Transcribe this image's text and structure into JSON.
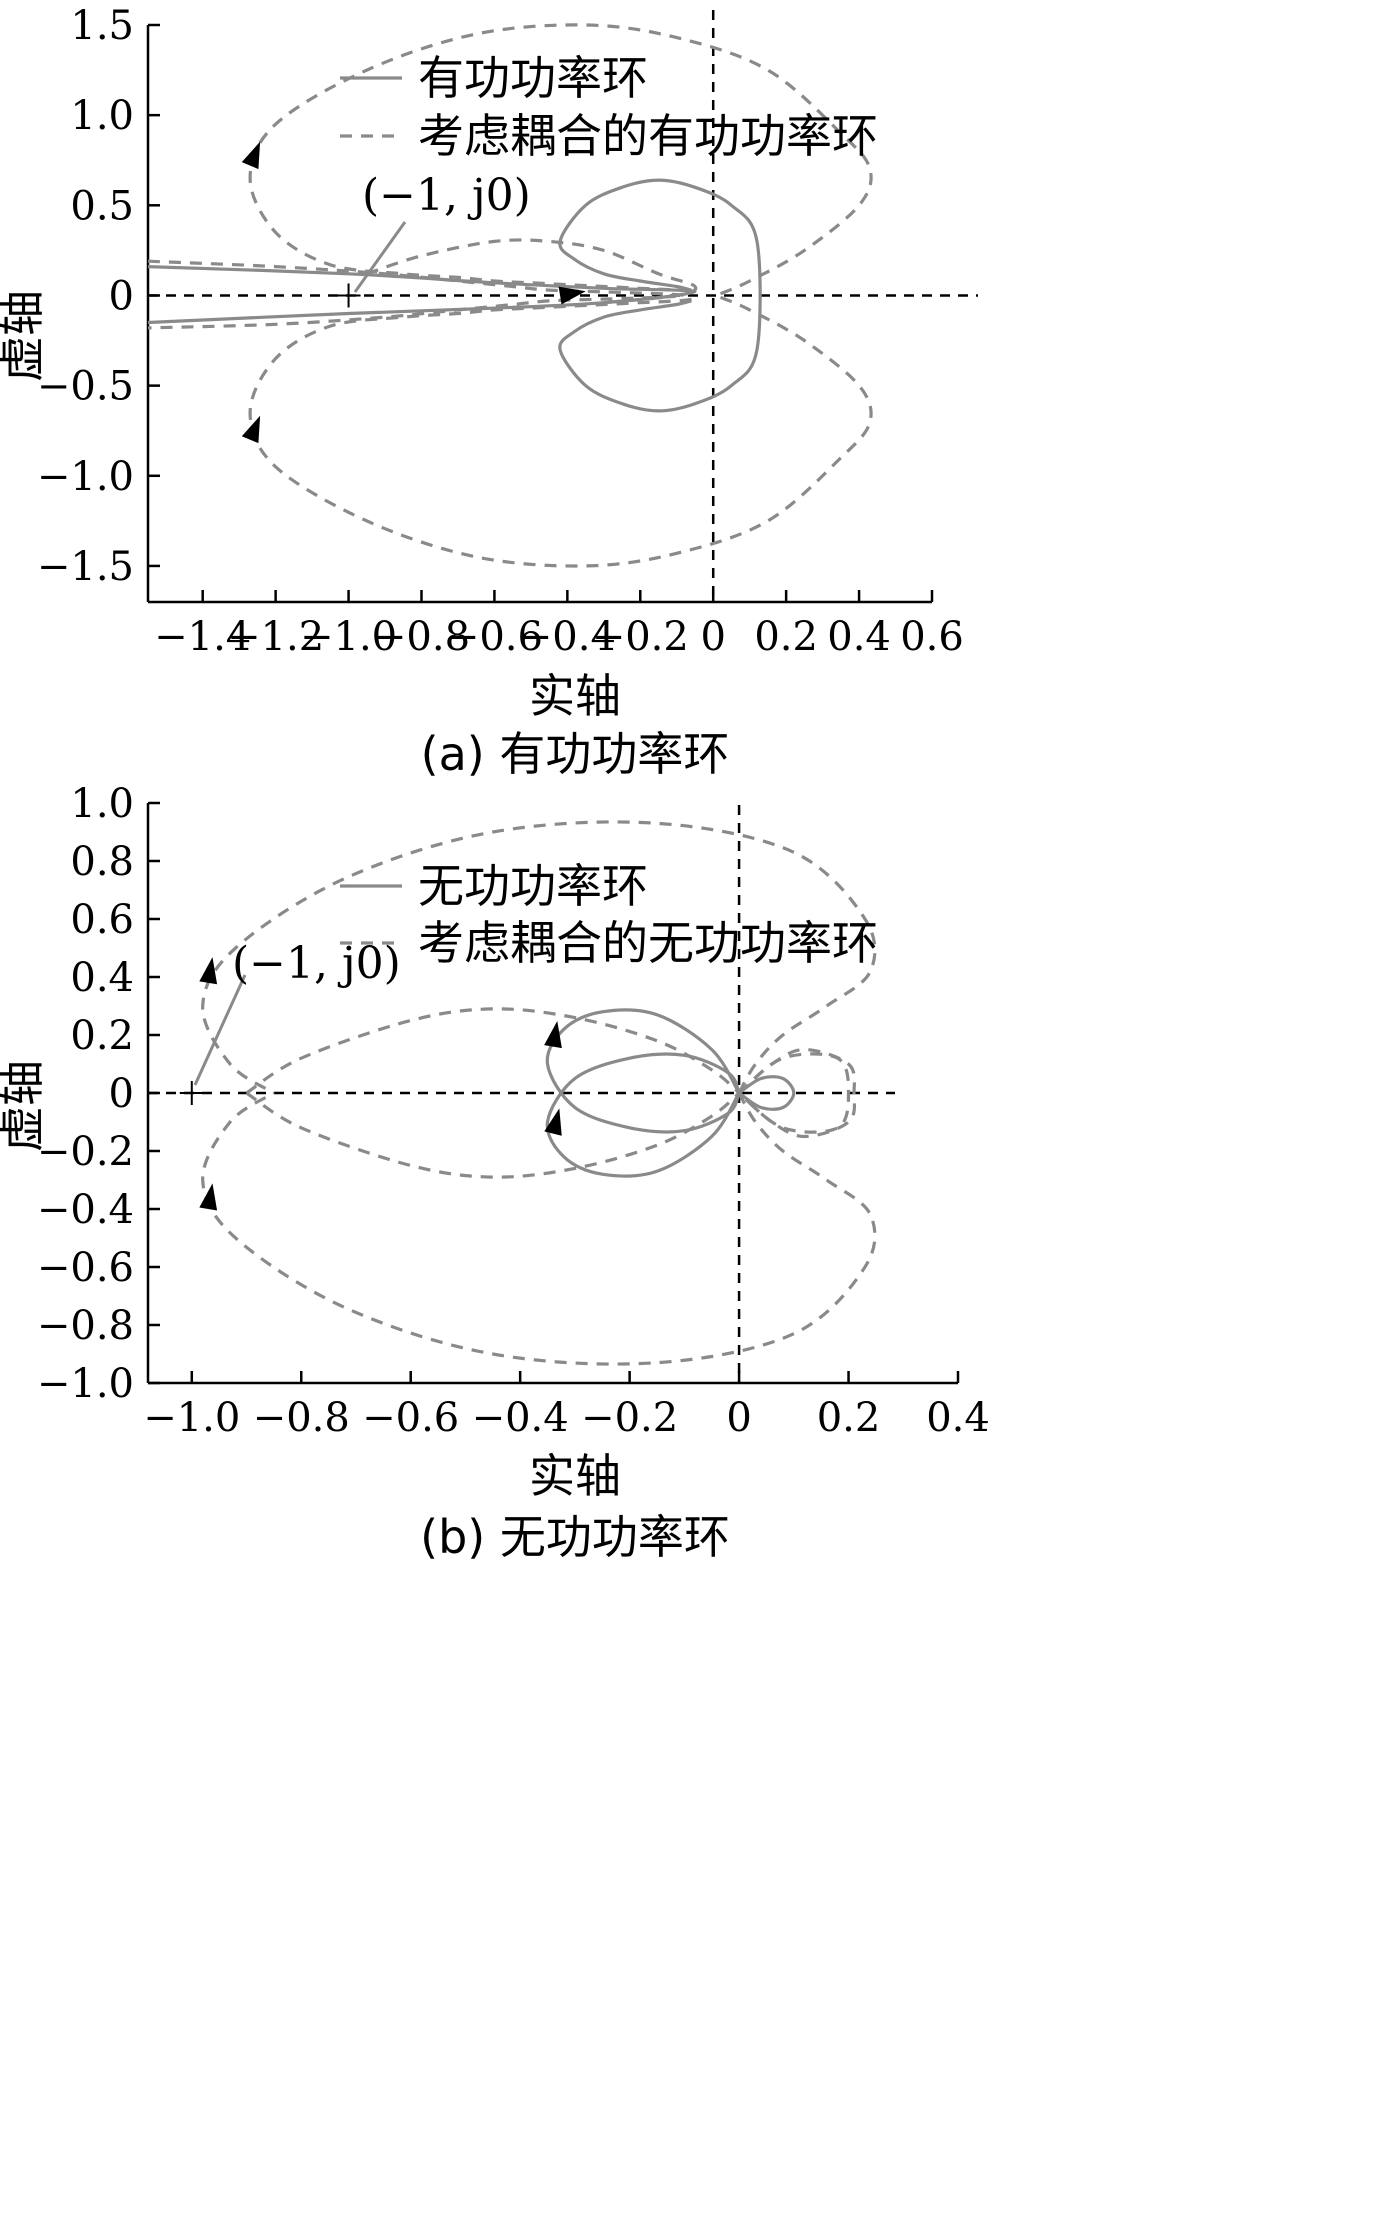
{
  "chart_data": [
    {
      "type": "line",
      "panel": "a",
      "caption": "(a)  有功功率环",
      "xlabel": "实轴",
      "ylabel": "虚轴",
      "xlim": [
        -1.55,
        0.6
      ],
      "ylim": [
        -1.7,
        1.5
      ],
      "xticks": [
        -1.4,
        -1.2,
        -1.0,
        -0.8,
        -0.6,
        -0.4,
        -0.2,
        0,
        0.2,
        0.4,
        0.6
      ],
      "xtick_labels": [
        "−1.4",
        "−1.2",
        "−1.0",
        "−0.8",
        "−0.6",
        "−0.4",
        "−0.2",
        "0",
        "0.2",
        "0.4",
        "0.6"
      ],
      "yticks": [
        1.5,
        1.0,
        0.5,
        0,
        -0.5,
        -1.0,
        -1.5
      ],
      "ytick_labels": [
        "1.5",
        "1.0",
        "0.5",
        "0",
        "−0.5",
        "−1.0",
        "−1.5"
      ],
      "grid": false,
      "legend_position": "top",
      "annotation": {
        "text": "(−1, j0)",
        "x": -1.0,
        "y": 0
      },
      "series": [
        {
          "name": "有功功率环",
          "style": "solid",
          "color": "#8a8a8a",
          "x": [
            -0.06,
            -0.1,
            -0.2,
            -0.3,
            -0.38,
            -0.42,
            -0.35,
            -0.25,
            -0.15,
            -0.05,
            0.05,
            0.12,
            0.12,
            0.05,
            -0.05,
            -0.15,
            -0.25,
            -0.35,
            -0.42,
            -0.38,
            -0.3,
            -0.2,
            -0.1,
            -0.06
          ],
          "y": [
            0.03,
            0.05,
            0.08,
            0.12,
            0.2,
            0.3,
            0.5,
            0.6,
            0.64,
            0.6,
            0.5,
            0.3,
            -0.3,
            -0.5,
            -0.6,
            -0.64,
            -0.6,
            -0.5,
            -0.3,
            -0.2,
            -0.12,
            -0.08,
            -0.05,
            -0.03
          ]
        },
        {
          "name": "有功功率环",
          "style": "solid",
          "color": "#8a8a8a",
          "x": [
            -1.55,
            -1.0,
            -0.6,
            -0.3,
            -0.05,
            -0.3,
            -0.6,
            -1.0,
            -1.55
          ],
          "y": [
            0.16,
            0.12,
            0.07,
            0.04,
            0.02,
            -0.04,
            -0.07,
            -0.1,
            -0.15
          ]
        },
        {
          "name": "考虑耦合的有功功率环",
          "style": "dashed",
          "color": "#8a8a8a",
          "x": [
            0.02,
            0.1,
            0.25,
            0.4,
            0.43,
            0.35,
            0.15,
            -0.1,
            -0.35,
            -0.65,
            -0.95,
            -1.2,
            -1.27,
            -1.2,
            -1.05,
            -0.85,
            -0.7,
            -0.6,
            -0.5,
            -0.4,
            -0.3,
            -0.2,
            -0.1,
            -0.05
          ],
          "y": [
            0.01,
            0.08,
            0.25,
            0.5,
            0.7,
            0.9,
            1.25,
            1.43,
            1.5,
            1.45,
            1.25,
            0.95,
            0.65,
            0.35,
            0.17,
            0.12,
            0.1,
            0.08,
            0.07,
            0.06,
            0.05,
            0.04,
            0.03,
            0.02
          ]
        },
        {
          "name": "考虑耦合的有功功率环",
          "style": "dashed",
          "color": "#8a8a8a",
          "x": [
            0.02,
            0.1,
            0.25,
            0.4,
            0.43,
            0.35,
            0.15,
            -0.1,
            -0.35,
            -0.65,
            -0.95,
            -1.2,
            -1.27,
            -1.2,
            -1.05,
            -0.85,
            -0.7,
            -0.6,
            -0.5,
            -0.4,
            -0.3,
            -0.2,
            -0.1,
            -0.05
          ],
          "y": [
            -0.01,
            -0.08,
            -0.25,
            -0.5,
            -0.7,
            -0.9,
            -1.25,
            -1.43,
            -1.5,
            -1.45,
            -1.25,
            -0.95,
            -0.65,
            -0.35,
            -0.17,
            -0.12,
            -0.1,
            -0.08,
            -0.07,
            -0.06,
            -0.05,
            -0.04,
            -0.03,
            -0.02
          ]
        },
        {
          "name": "考虑耦合的有功功率环",
          "style": "dashed",
          "color": "#8a8a8a",
          "x": [
            -1.55,
            -1.2,
            -0.9,
            -0.7,
            -0.55,
            -0.45,
            -0.3,
            -0.15,
            -0.08,
            -0.15,
            -0.3,
            -0.45,
            -0.55,
            -0.7,
            -0.9,
            -1.2,
            -1.55
          ],
          "y": [
            0.19,
            0.16,
            0.12,
            0.08,
            0.05,
            0.03,
            0.02,
            0.01,
            0.0,
            -0.01,
            -0.02,
            -0.03,
            -0.05,
            -0.08,
            -0.12,
            -0.16,
            -0.18
          ]
        },
        {
          "name": "考虑耦合的有功功率环",
          "style": "dashed",
          "color": "#8a8a8a",
          "x": [
            -0.95,
            -0.8,
            -0.6,
            -0.45,
            -0.3,
            -0.15,
            -0.05,
            -0.1,
            -0.3
          ],
          "y": [
            0.12,
            0.22,
            0.3,
            0.3,
            0.25,
            0.12,
            0.05,
            0.0,
            -0.04
          ]
        }
      ]
    },
    {
      "type": "line",
      "panel": "b",
      "caption": "(b)  无功功率环",
      "xlabel": "实轴",
      "ylabel": "虚轴",
      "xlim": [
        -1.08,
        0.4
      ],
      "ylim": [
        -1.0,
        1.0
      ],
      "xticks": [
        -1.0,
        -0.8,
        -0.6,
        -0.4,
        -0.2,
        0,
        0.2,
        0.4
      ],
      "xtick_labels": [
        "−1.0",
        "−0.8",
        "−0.6",
        "−0.4",
        "−0.2",
        "0",
        "0.2",
        "0.4"
      ],
      "yticks": [
        1.0,
        0.8,
        0.6,
        0.4,
        0.2,
        0,
        -0.2,
        -0.4,
        -0.6,
        -0.8,
        -1.0
      ],
      "ytick_labels": [
        "1.0",
        "0.8",
        "0.6",
        "0.4",
        "0.2",
        "0",
        "−0.2",
        "−0.4",
        "−0.6",
        "−0.8",
        "−1.0"
      ],
      "grid": false,
      "legend_position": "top",
      "annotation": {
        "text": "(−1, j0)",
        "x": -1.0,
        "y": 0
      },
      "series": [
        {
          "name": "无功功率环",
          "style": "solid",
          "color": "#8a8a8a",
          "x": [
            0.0,
            -0.05,
            -0.15,
            -0.25,
            -0.32,
            -0.35,
            -0.3,
            -0.2,
            -0.1,
            -0.02,
            0.0
          ],
          "y": [
            0.0,
            0.15,
            0.27,
            0.28,
            0.22,
            0.1,
            -0.05,
            -0.12,
            -0.13,
            -0.07,
            0.0
          ]
        },
        {
          "name": "无功功率环",
          "style": "solid",
          "color": "#8a8a8a",
          "x": [
            0.0,
            -0.05,
            -0.15,
            -0.25,
            -0.32,
            -0.35,
            -0.3,
            -0.2,
            -0.1,
            -0.02,
            0.0
          ],
          "y": [
            0.0,
            -0.15,
            -0.27,
            -0.28,
            -0.22,
            -0.1,
            0.05,
            0.12,
            0.13,
            0.07,
            0.0
          ]
        },
        {
          "name": "无功功率环",
          "style": "solid",
          "color": "#8a8a8a",
          "x": [
            0.0,
            0.04,
            0.08,
            0.1,
            0.08,
            0.04,
            0.0
          ],
          "y": [
            0.0,
            0.05,
            0.05,
            0.0,
            -0.05,
            -0.05,
            0.0
          ]
        },
        {
          "name": "考虑耦合的无功功率环",
          "style": "dashed",
          "color": "#8a8a8a",
          "x": [
            0.0,
            0.08,
            0.18,
            0.2,
            0.18,
            0.08,
            0.0
          ],
          "y": [
            0.0,
            0.12,
            0.12,
            0.0,
            -0.12,
            -0.12,
            0.0
          ]
        },
        {
          "name": "考虑耦合的无功功率环",
          "style": "dashed",
          "color": "#8a8a8a",
          "x": [
            0.0,
            0.06,
            0.12,
            0.2,
            0.21,
            0.2,
            0.12,
            0.06,
            0.0
          ],
          "y": [
            0.0,
            0.1,
            0.15,
            0.1,
            0.0,
            -0.1,
            -0.15,
            -0.1,
            0.0
          ]
        },
        {
          "name": "考虑耦合的无功功率环",
          "style": "dashed",
          "color": "#8a8a8a",
          "x": [
            0.0,
            0.03,
            0.08,
            0.16,
            0.24,
            0.23,
            0.1,
            -0.15,
            -0.45,
            -0.72,
            -0.92,
            -0.98,
            -0.93,
            -0.85
          ],
          "y": [
            0.0,
            0.1,
            0.2,
            0.3,
            0.42,
            0.6,
            0.83,
            0.93,
            0.9,
            0.74,
            0.5,
            0.3,
            0.1,
            0.0
          ]
        },
        {
          "name": "考虑耦合的无功功率环",
          "style": "dashed",
          "color": "#8a8a8a",
          "x": [
            0.0,
            0.03,
            0.08,
            0.16,
            0.24,
            0.23,
            0.1,
            -0.15,
            -0.45,
            -0.72,
            -0.92,
            -0.98,
            -0.93,
            -0.85
          ],
          "y": [
            0.0,
            -0.1,
            -0.2,
            -0.3,
            -0.42,
            -0.6,
            -0.83,
            -0.93,
            -0.9,
            -0.74,
            -0.5,
            -0.3,
            -0.1,
            0.0
          ]
        },
        {
          "name": "考虑耦合的无功功率环",
          "style": "dashed",
          "color": "#8a8a8a",
          "x": [
            -0.9,
            -0.8,
            -0.6,
            -0.45,
            -0.3,
            -0.15,
            -0.05,
            0.0
          ],
          "y": [
            0.0,
            0.12,
            0.25,
            0.29,
            0.26,
            0.18,
            0.08,
            0.0
          ]
        },
        {
          "name": "考虑耦合的无功功率环",
          "style": "dashed",
          "color": "#8a8a8a",
          "x": [
            -0.9,
            -0.8,
            -0.6,
            -0.45,
            -0.3,
            -0.15,
            -0.05,
            0.0
          ],
          "y": [
            0.0,
            -0.12,
            -0.25,
            -0.29,
            -0.26,
            -0.18,
            -0.08,
            0.0
          ]
        }
      ]
    }
  ]
}
